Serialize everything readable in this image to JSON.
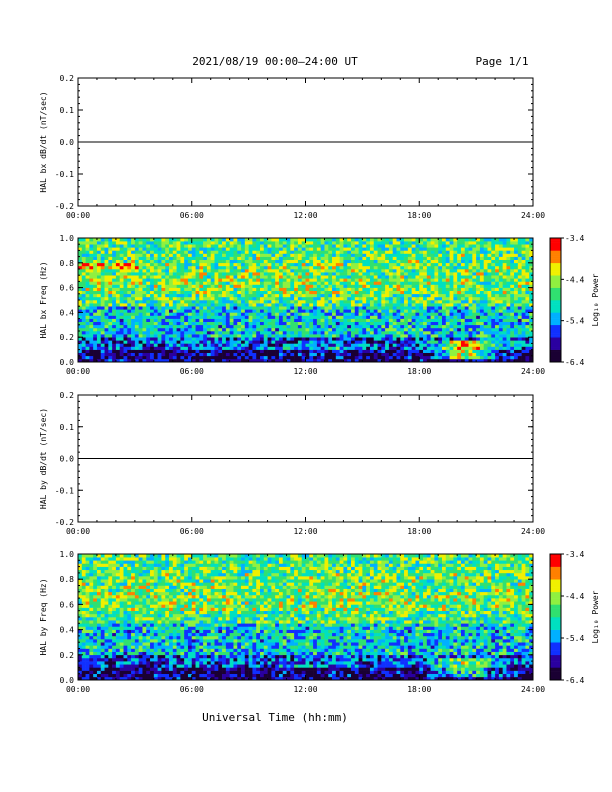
{
  "header": {
    "title": "2021/08/19  00:00—24:00 UT",
    "page": "Page 1/1"
  },
  "xlabel": "Universal Time (hh:mm)",
  "colors": {
    "colormap": [
      "#1a0033",
      "#2a00a0",
      "#1030ff",
      "#00b0ff",
      "#00e0c0",
      "#30e070",
      "#90f040",
      "#f0f000",
      "#ff8000",
      "#ff0000"
    ]
  },
  "chart_data": [
    {
      "type": "line",
      "ylabel": "HAL bx dB/dt (nT/sec)",
      "x_ticks": [
        "00:00",
        "06:00",
        "12:00",
        "18:00",
        "24:00"
      ],
      "y_ticks": [
        "0.2",
        "0.1",
        "0.0",
        "-0.1",
        "-0.2"
      ],
      "ylim": [
        -0.2,
        0.2
      ],
      "series": [
        {
          "values": [
            0.0,
            0.0,
            0.0,
            0.0,
            0.0
          ]
        }
      ]
    },
    {
      "type": "heatmap",
      "ylabel": "HAL bx Freq (Hz)",
      "x_ticks": [
        "00:00",
        "06:00",
        "12:00",
        "18:00",
        "24:00"
      ],
      "y_ticks": [
        "1.0",
        "0.8",
        "0.6",
        "0.4",
        "0.2",
        "0.0"
      ],
      "ylim": [
        0.0,
        1.0
      ],
      "colorbar_label": "Log₁₀ Power",
      "colorbar_ticks": [
        "-3.4",
        "-4.4",
        "-5.4",
        "-6.4"
      ],
      "clim": [
        -6.4,
        -3.4
      ]
    },
    {
      "type": "line",
      "ylabel": "HAL by dB/dt (nT/sec)",
      "x_ticks": [
        "00:00",
        "06:00",
        "12:00",
        "18:00",
        "24:00"
      ],
      "y_ticks": [
        "0.2",
        "0.1",
        "0.0",
        "-0.1",
        "-0.2"
      ],
      "ylim": [
        -0.2,
        0.2
      ],
      "series": [
        {
          "values": [
            0.0,
            0.0,
            0.0,
            0.0,
            0.0
          ]
        }
      ]
    },
    {
      "type": "heatmap",
      "ylabel": "HAL by Freq (Hz)",
      "x_ticks": [
        "00:00",
        "06:00",
        "12:00",
        "18:00",
        "24:00"
      ],
      "y_ticks": [
        "1.0",
        "0.8",
        "0.6",
        "0.4",
        "0.2",
        "0.0"
      ],
      "ylim": [
        0.0,
        1.0
      ],
      "colorbar_label": "Log₁₀ Power",
      "colorbar_ticks": [
        "-3.4",
        "-4.4",
        "-5.4",
        "-6.4"
      ],
      "clim": [
        -6.4,
        -3.4
      ]
    }
  ]
}
